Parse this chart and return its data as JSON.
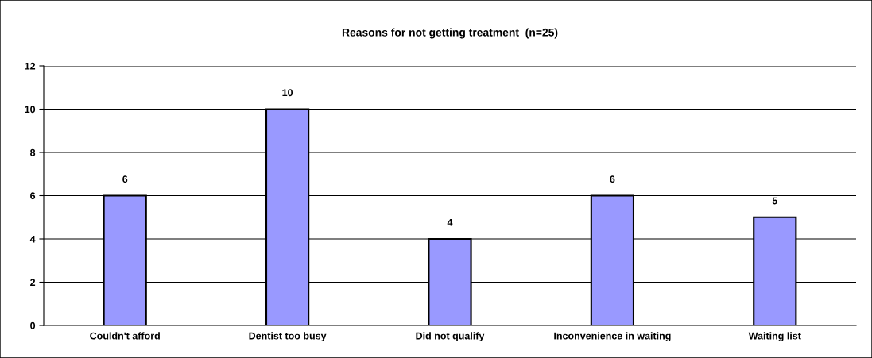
{
  "chart_data": {
    "type": "bar",
    "title": "Reasons for not getting treatment  (n=25)",
    "categories": [
      "Couldn't afford",
      "Dentist too busy",
      "Did not qualify",
      "Inconvenience in waiting",
      "Waiting list"
    ],
    "values": [
      6,
      10,
      4,
      6,
      5
    ],
    "color": "#9999ff",
    "ylim": [
      0,
      12
    ],
    "yticks": [
      0,
      2,
      4,
      6,
      8,
      10,
      12
    ],
    "grid": "y",
    "legend": false,
    "data_labels": true
  }
}
